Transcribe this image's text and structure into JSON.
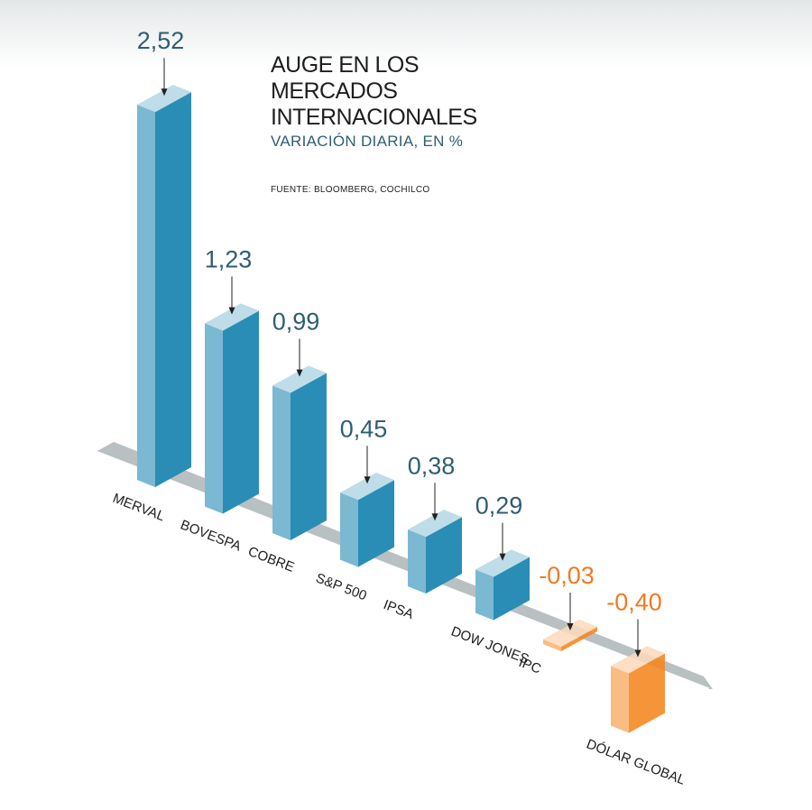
{
  "chart_data": {
    "type": "bar3d",
    "title": "AUGE EN LOS MERCADOS INTERNACIONALES",
    "subtitle": "VARIACIÓN DIARIA, EN %",
    "source": "FUENTE: BLOOMBERG, COCHILCO",
    "categories": [
      "MERVAL",
      "BOVESPA",
      "COBRE",
      "S&P 500",
      "IPSA",
      "DOW JONES",
      "IPC",
      "DÓLAR GLOBAL"
    ],
    "values": [
      2.52,
      1.23,
      0.99,
      0.45,
      0.38,
      0.29,
      -0.03,
      -0.4
    ],
    "value_labels": [
      "2,52",
      "1,23",
      "0,99",
      "0,45",
      "0,38",
      "0,29",
      "-0,03",
      "-0,40"
    ],
    "positive_color": "#2a8db5",
    "negative_color": "#f5861f"
  }
}
